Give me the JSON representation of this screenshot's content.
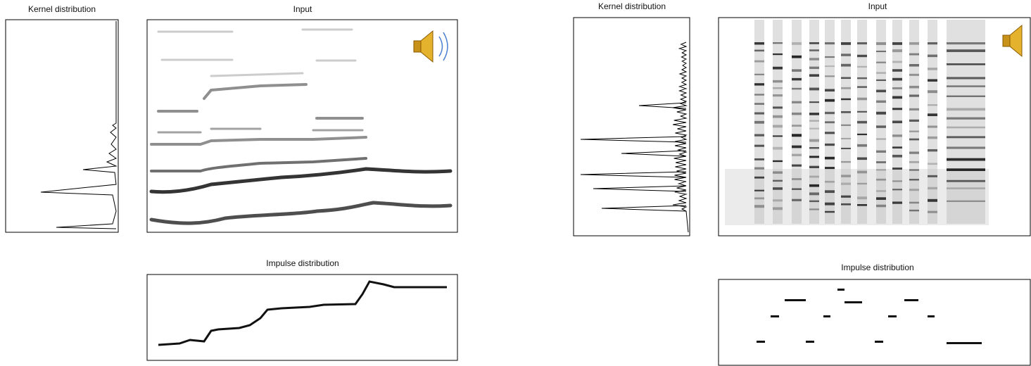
{
  "left": {
    "kernel": {
      "title": "Kernel distribution"
    },
    "input": {
      "title": "Input"
    },
    "impulse": {
      "title": "Impulse distribution"
    }
  },
  "right": {
    "kernel": {
      "title": "Kernel distribution"
    },
    "input": {
      "title": "Input"
    },
    "impulse": {
      "title": "Impulse distribution"
    }
  }
}
